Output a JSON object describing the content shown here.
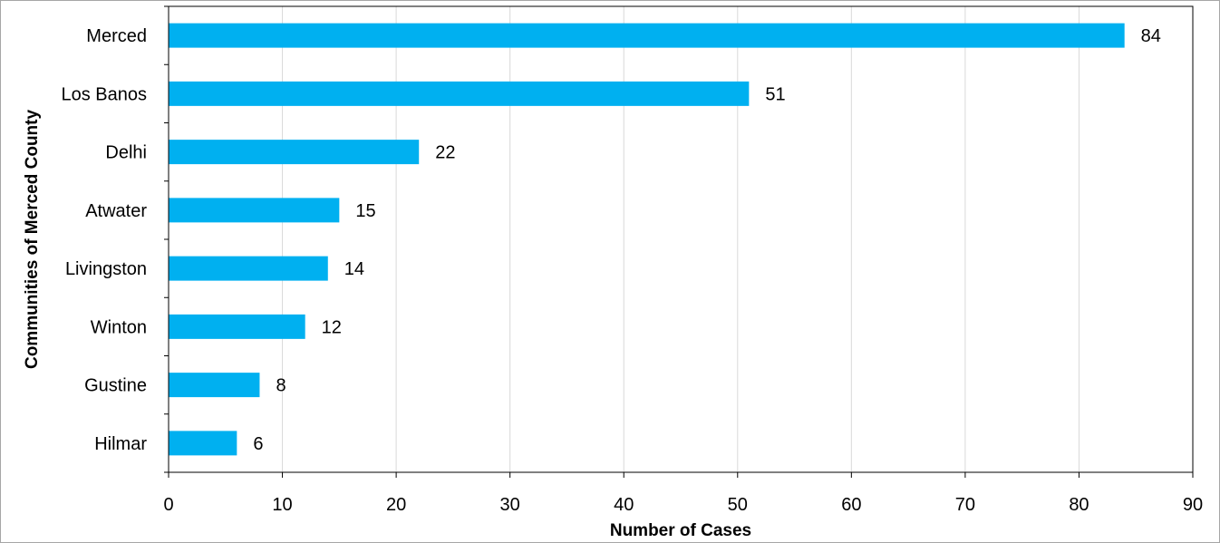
{
  "chart_data": {
    "type": "bar",
    "orientation": "horizontal",
    "title": "",
    "xlabel": "Number of Cases",
    "ylabel": "Communities of Merced County",
    "categories": [
      "Merced",
      "Los Banos",
      "Delhi",
      "Atwater",
      "Livingston",
      "Winton",
      "Gustine",
      "Hilmar"
    ],
    "values": [
      84,
      51,
      22,
      15,
      14,
      12,
      8,
      6
    ],
    "xlim": [
      0,
      90
    ],
    "xticks": [
      0,
      10,
      20,
      30,
      40,
      50,
      60,
      70,
      80,
      90
    ],
    "grid": "vertical",
    "bar_color": "#00b0f0",
    "gridline_color": "#d9d9d9",
    "axis_color": "#000000"
  }
}
